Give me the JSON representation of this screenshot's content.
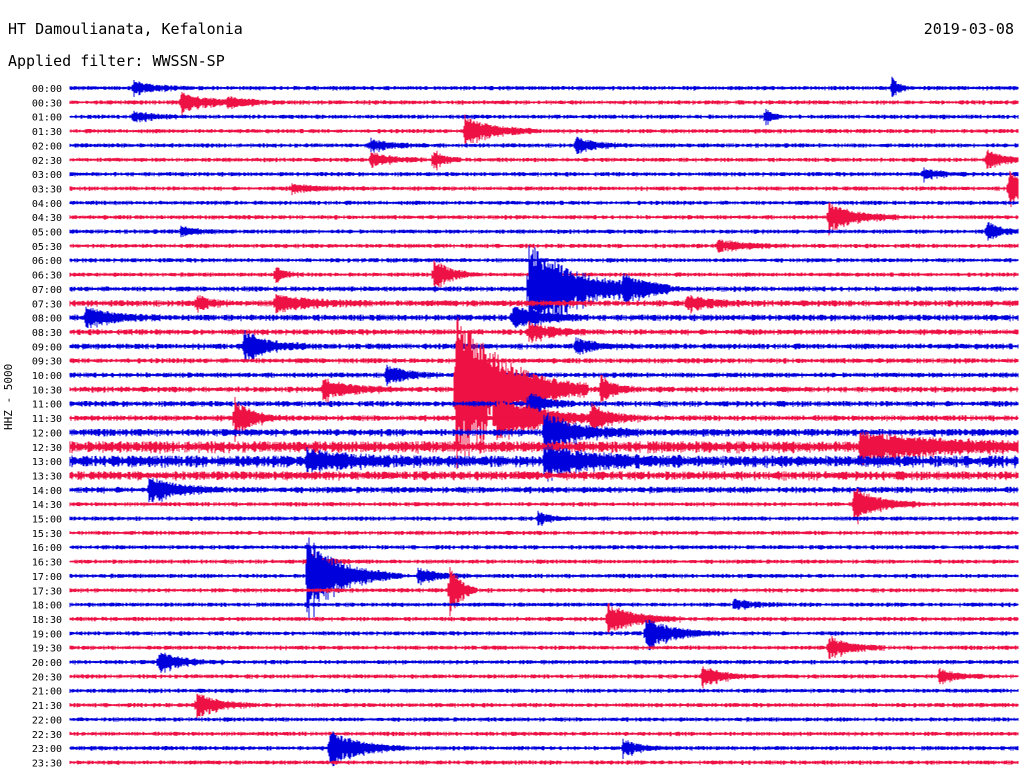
{
  "header": {
    "station": "HT Damoulianata, Kefalonia",
    "date": "2019-03-08",
    "filter": "Applied filter: WWSSN-SP"
  },
  "chart_data": {
    "type": "line",
    "title": "HT Damoulianata, Kefalonia",
    "subtitle": "Applied filter: WWSSN-SP",
    "date": "2019-03-08",
    "ylabel": "HHZ - 5000",
    "rows": [
      "00:00",
      "00:30",
      "01:00",
      "01:30",
      "02:00",
      "02:30",
      "03:00",
      "03:30",
      "04:00",
      "04:30",
      "05:00",
      "05:30",
      "06:00",
      "06:30",
      "07:00",
      "07:30",
      "08:00",
      "08:30",
      "09:00",
      "09:30",
      "10:00",
      "10:30",
      "11:00",
      "11:30",
      "12:00",
      "12:30",
      "13:00",
      "13:30",
      "14:00",
      "14:30",
      "15:00",
      "15:30",
      "16:00",
      "16:30",
      "17:00",
      "17:30",
      "18:00",
      "18:30",
      "19:00",
      "19:30",
      "20:00",
      "20:30",
      "21:00",
      "21:30",
      "22:00",
      "22:30",
      "23:00",
      "23:30"
    ],
    "series_colors": [
      "#0000dd",
      "#ee1144"
    ],
    "noise_level": [
      1.5,
      1.5,
      1.5,
      1.5,
      1.5,
      1.5,
      1.5,
      1.5,
      1.5,
      1.5,
      1.5,
      1.5,
      1.5,
      1.5,
      1.8,
      2.2,
      2.2,
      2,
      2,
      1.8,
      1.8,
      2,
      2,
      2,
      2.5,
      4,
      4,
      3,
      2.2,
      1.5,
      1.5,
      1.5,
      1.5,
      1.5,
      1.5,
      1.5,
      1.5,
      1.5,
      1.5,
      1.5,
      1.5,
      1.5,
      1.5,
      1.5,
      1.5,
      1.5,
      1.5,
      1.5
    ],
    "events": [
      {
        "row": "00:00",
        "minute": 2,
        "amp": 7,
        "duration": 0.6
      },
      {
        "row": "00:00",
        "minute": 26,
        "amp": 12,
        "duration": 0.2
      },
      {
        "row": "00:30",
        "minute": 3.5,
        "amp": 10,
        "duration": 0.8
      },
      {
        "row": "00:30",
        "minute": 5,
        "amp": 4,
        "duration": 0.6
      },
      {
        "row": "01:00",
        "minute": 2,
        "amp": 5,
        "duration": 0.6
      },
      {
        "row": "01:00",
        "minute": 22,
        "amp": 10,
        "duration": 0.2
      },
      {
        "row": "01:30",
        "minute": 12.5,
        "amp": 16,
        "duration": 0.8
      },
      {
        "row": "02:00",
        "minute": 9.5,
        "amp": 6,
        "duration": 0.6
      },
      {
        "row": "02:00",
        "minute": 16,
        "amp": 8,
        "duration": 0.6
      },
      {
        "row": "02:30",
        "minute": 9.5,
        "amp": 8,
        "duration": 0.6
      },
      {
        "row": "02:30",
        "minute": 11.5,
        "amp": 10,
        "duration": 0.3
      },
      {
        "row": "02:30",
        "minute": 29,
        "amp": 10,
        "duration": 0.5
      },
      {
        "row": "03:00",
        "minute": 27,
        "amp": 6,
        "duration": 0.5
      },
      {
        "row": "03:30",
        "minute": 7,
        "amp": 4,
        "duration": 0.8
      },
      {
        "row": "03:30",
        "minute": 29.7,
        "amp": 18,
        "duration": 0.5
      },
      {
        "row": "04:30",
        "minute": 24,
        "amp": 14,
        "duration": 0.8
      },
      {
        "row": "05:00",
        "minute": 3.5,
        "amp": 5,
        "duration": 0.5
      },
      {
        "row": "05:00",
        "minute": 29,
        "amp": 10,
        "duration": 0.4
      },
      {
        "row": "05:30",
        "minute": 20.5,
        "amp": 6,
        "duration": 0.8
      },
      {
        "row": "06:30",
        "minute": 6.5,
        "amp": 8,
        "duration": 0.3
      },
      {
        "row": "06:30",
        "minute": 11.5,
        "amp": 16,
        "duration": 0.5
      },
      {
        "row": "07:00",
        "minute": 14.5,
        "amp": 46,
        "duration": 1.5
      },
      {
        "row": "07:00",
        "minute": 17.5,
        "amp": 10,
        "duration": 0.6
      },
      {
        "row": "07:30",
        "minute": 4,
        "amp": 8,
        "duration": 0.4
      },
      {
        "row": "07:30",
        "minute": 6.5,
        "amp": 8,
        "duration": 1
      },
      {
        "row": "07:30",
        "minute": 19.5,
        "amp": 9,
        "duration": 0.6
      },
      {
        "row": "08:00",
        "minute": 0.5,
        "amp": 10,
        "duration": 0.8
      },
      {
        "row": "08:00",
        "minute": 14,
        "amp": 12,
        "duration": 0.8
      },
      {
        "row": "08:30",
        "minute": 14.5,
        "amp": 10,
        "duration": 0.6
      },
      {
        "row": "09:00",
        "minute": 5.5,
        "amp": 16,
        "duration": 0.7
      },
      {
        "row": "09:00",
        "minute": 16,
        "amp": 8,
        "duration": 0.6
      },
      {
        "row": "10:00",
        "minute": 10,
        "amp": 10,
        "duration": 0.6
      },
      {
        "row": "10:30",
        "minute": 8,
        "amp": 10,
        "duration": 0.8
      },
      {
        "row": "10:30",
        "minute": 12.2,
        "amp": 90,
        "duration": 1.4
      },
      {
        "row": "10:30",
        "minute": 16.8,
        "amp": 14,
        "duration": 0.4
      },
      {
        "row": "11:00",
        "minute": 14.5,
        "amp": 12,
        "duration": 0.5
      },
      {
        "row": "11:30",
        "minute": 5.2,
        "amp": 20,
        "duration": 0.5
      },
      {
        "row": "11:30",
        "minute": 13.5,
        "amp": 26,
        "duration": 1.2
      },
      {
        "row": "11:30",
        "minute": 16.5,
        "amp": 12,
        "duration": 0.6
      },
      {
        "row": "12:00",
        "minute": 15,
        "amp": 20,
        "duration": 1
      },
      {
        "row": "12:30",
        "minute": 25,
        "amp": 12,
        "duration": 2.6
      },
      {
        "row": "13:00",
        "minute": 7.5,
        "amp": 10,
        "duration": 1.2
      },
      {
        "row": "13:00",
        "minute": 15,
        "amp": 14,
        "duration": 1.5
      },
      {
        "row": "14:00",
        "minute": 2.5,
        "amp": 12,
        "duration": 0.8
      },
      {
        "row": "14:30",
        "minute": 24.8,
        "amp": 18,
        "duration": 0.7
      },
      {
        "row": "15:00",
        "minute": 14.8,
        "amp": 6,
        "duration": 0.4
      },
      {
        "row": "16:30",
        "minute": 7.5,
        "amp": 8,
        "duration": 0.5
      },
      {
        "row": "17:00",
        "minute": 7.5,
        "amp": 40,
        "duration": 1
      },
      {
        "row": "17:00",
        "minute": 11,
        "amp": 8,
        "duration": 0.6
      },
      {
        "row": "17:30",
        "minute": 12,
        "amp": 30,
        "duration": 0.3
      },
      {
        "row": "18:00",
        "minute": 21,
        "amp": 6,
        "duration": 0.5
      },
      {
        "row": "18:30",
        "minute": 17,
        "amp": 16,
        "duration": 0.8
      },
      {
        "row": "19:00",
        "minute": 18.2,
        "amp": 16,
        "duration": 0.8
      },
      {
        "row": "19:30",
        "minute": 24,
        "amp": 12,
        "duration": 0.6
      },
      {
        "row": "20:00",
        "minute": 2.8,
        "amp": 10,
        "duration": 0.7
      },
      {
        "row": "20:30",
        "minute": 20,
        "amp": 10,
        "duration": 0.6
      },
      {
        "row": "20:30",
        "minute": 27.5,
        "amp": 8,
        "duration": 0.5
      },
      {
        "row": "21:30",
        "minute": 4,
        "amp": 14,
        "duration": 0.6
      },
      {
        "row": "23:00",
        "minute": 8.2,
        "amp": 20,
        "duration": 0.8
      },
      {
        "row": "23:00",
        "minute": 17.5,
        "amp": 8,
        "duration": 0.5
      }
    ]
  }
}
